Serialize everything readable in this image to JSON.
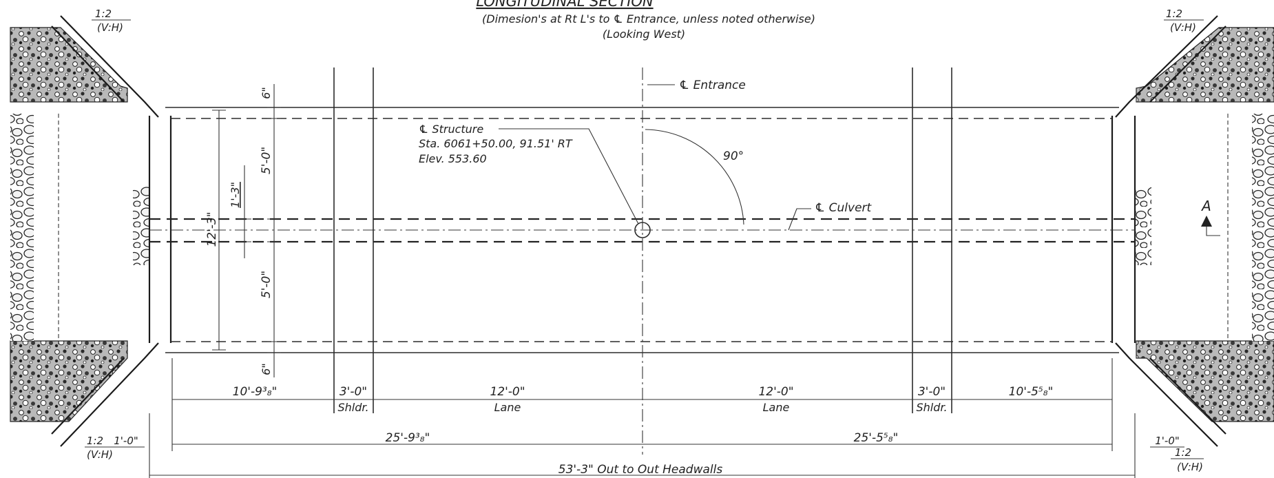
{
  "title": "LONGITUDINAL SECTION",
  "subtitle": "(Dimesion's at Rt L's to ℄ Entrance, unless noted otherwise)",
  "view_note": "(Looking West)",
  "slope_labels": {
    "top_left": {
      "ratio": "1:2",
      "units": "(V:H)"
    },
    "top_right": {
      "ratio": "1:2",
      "units": "(V:H)"
    },
    "bottom_left": {
      "ratio": "1:2",
      "dim": "1'-0\"",
      "units": "(V:H)"
    },
    "bottom_right": {
      "ratio": "1:2",
      "dim": "1'-0\"",
      "units": "(V:H)"
    }
  },
  "centerlines": {
    "entrance": "℄ Entrance",
    "culvert": "℄ Culvert"
  },
  "structure_note": {
    "line1": "℄ Structure",
    "line2": "Sta. 6061+50.00, 91.51' RT",
    "line3": "Elev. 553.60"
  },
  "angle_label": "90°",
  "section_marker": "A",
  "vertical_dims": {
    "top_offset": "6\"",
    "upper_half": "5'-0\"",
    "culvert_height": "1'-3\"",
    "overall_width": "12'-3\"",
    "lower_half": "5'-0\"",
    "bottom_offset": "6\""
  },
  "horizontal_dims": {
    "left_edge": "10'-9³₈\"",
    "left_shoulder": "3'-0\"",
    "left_shoulder_label": "Shldr.",
    "left_lane": "12'-0\"",
    "left_lane_label": "Lane",
    "right_lane": "12'-0\"",
    "right_lane_label": "Lane",
    "right_shoulder": "3'-0\"",
    "right_shoulder_label": "Shldr.",
    "right_edge": "10'-5⁵₈\"",
    "left_total": "25'-9³₈\"",
    "right_total": "25'-5⁵₈\"",
    "overall": "53'-3\" Out to Out Headwalls"
  },
  "colors": {
    "ink": "#222222",
    "paper": "#ffffff"
  }
}
